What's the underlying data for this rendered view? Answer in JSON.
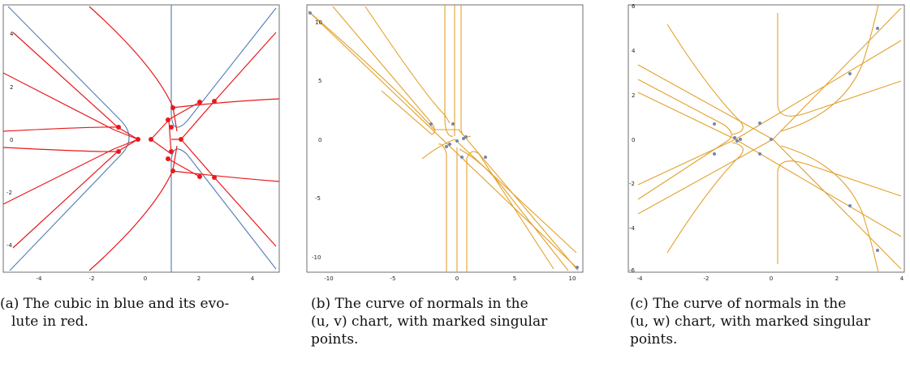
{
  "colors": {
    "blue": "#5b84b8",
    "red": "#e8191c",
    "orange": "#e3a12b",
    "point": "#7386ad"
  },
  "panels": [
    {
      "id": "a",
      "caption_line1": "(a) The cubic in blue and its evo-",
      "caption_line2": "lute in red.",
      "x_ticks": [
        "-4",
        "-2",
        "0",
        "2",
        "4"
      ],
      "y_ticks": [
        "4",
        "2",
        "0",
        "-2",
        "-4"
      ],
      "xlim": [
        -5.2,
        5.2
      ],
      "ylim": [
        -5.2,
        5.2
      ]
    },
    {
      "id": "b",
      "caption_line1": "(b) The curve of normals in the",
      "caption_line2": "(u, v) chart, with marked singular",
      "caption_line3": "points.",
      "x_ticks": [
        "-10",
        "-5",
        "0",
        "5",
        "10"
      ],
      "y_ticks": [
        "10",
        "5",
        "0",
        "-5",
        "-10"
      ],
      "xlim": [
        -11.8,
        11.8
      ],
      "ylim": [
        -11.5,
        11.5
      ]
    },
    {
      "id": "c",
      "caption_line1": "(c) The curve of normals in the",
      "caption_line2": "(u, w) chart, with marked singular",
      "caption_line3": "points.",
      "x_ticks": [
        "-4",
        "-2",
        "0",
        "2",
        "4"
      ],
      "y_ticks": [
        "6",
        "4",
        "2",
        "0",
        "-2",
        "-4",
        "-6"
      ],
      "xlim": [
        -4.2,
        4.2
      ],
      "ylim": [
        -6.2,
        6.2
      ]
    }
  ],
  "chart_data": [
    {
      "type": "line",
      "series": [],
      "marked_points": [
        [
          -1,
          0.5
        ],
        [
          -1,
          -0.5
        ],
        [
          -0.3,
          0
        ],
        [
          0.2,
          0
        ],
        [
          0.8,
          0.8
        ],
        [
          0.8,
          -0.8
        ],
        [
          1,
          1.3
        ],
        [
          1,
          -1.3
        ],
        [
          1,
          0.6
        ],
        [
          1,
          -0.6
        ],
        [
          1.4,
          0
        ],
        [
          2.1,
          1.45
        ],
        [
          2.7,
          1.5
        ],
        [
          2.1,
          -1.45
        ],
        [
          2.7,
          -1.5
        ]
      ]
    },
    {
      "type": "line",
      "series": [],
      "marked_points": [
        [
          -11,
          11
        ],
        [
          11,
          -11
        ],
        [
          -2.5,
          1.4
        ],
        [
          -0.9,
          -0.3
        ],
        [
          -0.6,
          -0.2
        ],
        [
          -0.4,
          1.3
        ],
        [
          0,
          0
        ],
        [
          0.4,
          0.2
        ],
        [
          0.6,
          0.3
        ],
        [
          0.4,
          -1.3
        ],
        [
          2.3,
          -1.4
        ]
      ]
    },
    {
      "type": "line",
      "series": [],
      "marked_points": [
        [
          3.2,
          5.1
        ],
        [
          3.2,
          -5.1
        ],
        [
          2.5,
          3
        ],
        [
          2.5,
          -3
        ],
        [
          -1.8,
          0.7
        ],
        [
          -1.8,
          -0.7
        ],
        [
          -1.0,
          0.05
        ],
        [
          -1.1,
          -0.05
        ],
        [
          -0.9,
          0
        ],
        [
          -0.5,
          0.7
        ],
        [
          -0.5,
          -0.7
        ],
        [
          0,
          0
        ]
      ]
    }
  ]
}
